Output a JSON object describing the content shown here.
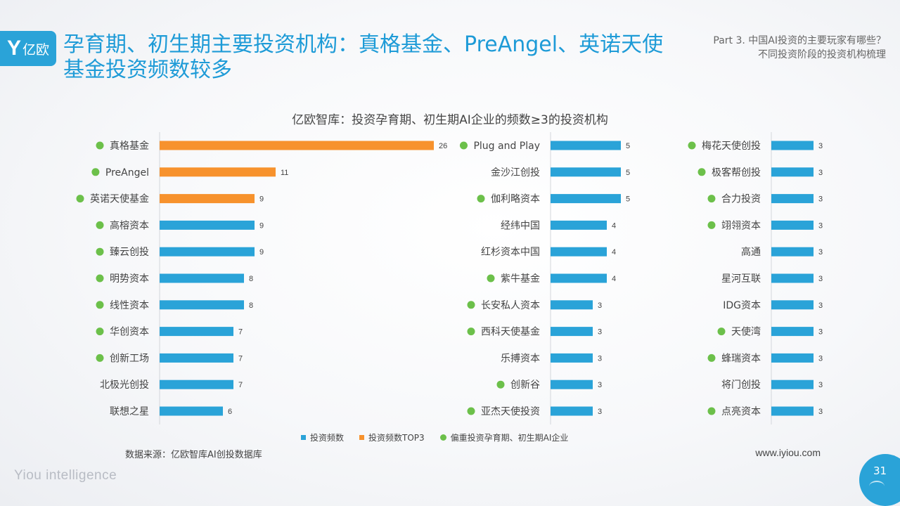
{
  "logo": {
    "mark": "Y",
    "text": "亿欧"
  },
  "title": "孕育期、初生期主要投资机构：真格基金、PreAngel、英诺天使基金投资频数较多",
  "part": {
    "line1": "Part 3. 中国AI投资的主要玩家有哪些？",
    "line2": "不同投资阶段的投资机构梳理"
  },
  "colors": {
    "bar": "#2aa3d8",
    "top3": "#f7922d",
    "dot": "#6cc04a",
    "title": "#1e9bd7"
  },
  "chart_data": {
    "type": "bar",
    "orientation": "horizontal",
    "title": "亿欧智库：投资孕育期、初生期AI企业的频数≥3的投资机构",
    "legend": [
      "投资频数",
      "投资频数TOP3",
      "偏重投资孕育期、初生期AI企业"
    ],
    "panels": [
      {
        "items": [
          {
            "name": "真格基金",
            "value": 26,
            "top3": true,
            "focus": true
          },
          {
            "name": "PreAngel",
            "value": 11,
            "top3": true,
            "focus": true
          },
          {
            "name": "英诺天使基金",
            "value": 9,
            "top3": true,
            "focus": true
          },
          {
            "name": "高榕资本",
            "value": 9,
            "top3": false,
            "focus": true
          },
          {
            "name": "臻云创投",
            "value": 9,
            "top3": false,
            "focus": true
          },
          {
            "name": "明势资本",
            "value": 8,
            "top3": false,
            "focus": true
          },
          {
            "name": "线性资本",
            "value": 8,
            "top3": false,
            "focus": true
          },
          {
            "name": "华创资本",
            "value": 7,
            "top3": false,
            "focus": true
          },
          {
            "name": "创新工场",
            "value": 7,
            "top3": false,
            "focus": true
          },
          {
            "name": "北极光创投",
            "value": 7,
            "top3": false,
            "focus": false
          },
          {
            "name": "联想之星",
            "value": 6,
            "top3": false,
            "focus": false
          }
        ]
      },
      {
        "items": [
          {
            "name": "Plug and Play",
            "value": 5,
            "top3": false,
            "focus": true
          },
          {
            "name": "金沙江创投",
            "value": 5,
            "top3": false,
            "focus": false
          },
          {
            "name": "伽利略资本",
            "value": 5,
            "top3": false,
            "focus": true
          },
          {
            "name": "经纬中国",
            "value": 4,
            "top3": false,
            "focus": false
          },
          {
            "name": "红杉资本中国",
            "value": 4,
            "top3": false,
            "focus": false
          },
          {
            "name": "紫牛基金",
            "value": 4,
            "top3": false,
            "focus": true
          },
          {
            "name": "长安私人资本",
            "value": 3,
            "top3": false,
            "focus": true
          },
          {
            "name": "西科天使基金",
            "value": 3,
            "top3": false,
            "focus": true
          },
          {
            "name": "乐搏资本",
            "value": 3,
            "top3": false,
            "focus": false
          },
          {
            "name": "创新谷",
            "value": 3,
            "top3": false,
            "focus": true
          },
          {
            "name": "亚杰天使投资",
            "value": 3,
            "top3": false,
            "focus": true
          }
        ]
      },
      {
        "items": [
          {
            "name": "梅花天使创投",
            "value": 3,
            "top3": false,
            "focus": true
          },
          {
            "name": "极客帮创投",
            "value": 3,
            "top3": false,
            "focus": true
          },
          {
            "name": "合力投资",
            "value": 3,
            "top3": false,
            "focus": true
          },
          {
            "name": "翊翎资本",
            "value": 3,
            "top3": false,
            "focus": true
          },
          {
            "name": "高通",
            "value": 3,
            "top3": false,
            "focus": false
          },
          {
            "name": "星河互联",
            "value": 3,
            "top3": false,
            "focus": false
          },
          {
            "name": "IDG资本",
            "value": 3,
            "top3": false,
            "focus": false
          },
          {
            "name": "天使湾",
            "value": 3,
            "top3": false,
            "focus": true
          },
          {
            "name": "蜂瑞资本",
            "value": 3,
            "top3": false,
            "focus": true
          },
          {
            "name": "将门创投",
            "value": 3,
            "top3": false,
            "focus": false
          },
          {
            "name": "点亮资本",
            "value": 3,
            "top3": false,
            "focus": true
          }
        ]
      }
    ]
  },
  "source": "数据来源：亿欧智库AI创投数据库",
  "site": "www.iyiou.com",
  "brand": "Yiou intelligence",
  "page_number": "31"
}
